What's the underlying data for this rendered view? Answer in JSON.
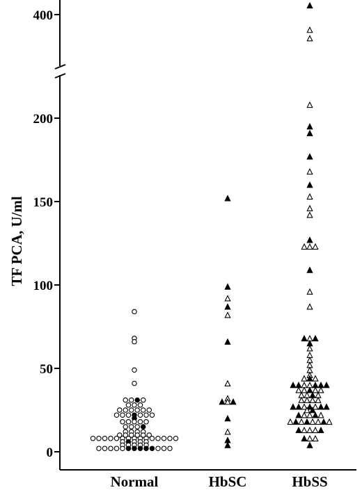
{
  "chart_data": {
    "type": "scatter",
    "title": "",
    "xlabel": "",
    "ylabel": "TF PCA, U/ml",
    "categories": [
      "Normal",
      "HbSC",
      "HbSS"
    ],
    "y_ticks_lower": [
      "0",
      "50",
      "100",
      "150",
      "200"
    ],
    "y_ticks_upper": [
      "400"
    ],
    "ylim_lower": [
      0,
      225
    ],
    "ylim_upper": [
      350,
      420
    ],
    "axis_break": "between 225 and 350",
    "marker_legend": {
      "Normal": "circle",
      "HbSC": "triangle",
      "HbSS": "triangle"
    },
    "series": [
      {
        "group": "Normal",
        "points": [
          {
            "y": 84,
            "filled": false
          },
          {
            "y": 68,
            "filled": false
          },
          {
            "y": 66,
            "filled": false
          },
          {
            "y": 49,
            "filled": false
          },
          {
            "y": 41,
            "filled": false
          },
          {
            "y": 31,
            "filled": false
          },
          {
            "y": 31,
            "filled": false
          },
          {
            "y": 31,
            "filled": true
          },
          {
            "y": 31,
            "filled": false
          },
          {
            "y": 28,
            "filled": false
          },
          {
            "y": 28,
            "filled": false
          },
          {
            "y": 28,
            "filled": false
          },
          {
            "y": 25,
            "filled": false
          },
          {
            "y": 25,
            "filled": false
          },
          {
            "y": 25,
            "filled": false
          },
          {
            "y": 25,
            "filled": false
          },
          {
            "y": 25,
            "filled": false
          },
          {
            "y": 25,
            "filled": false
          },
          {
            "y": 22,
            "filled": false
          },
          {
            "y": 22,
            "filled": false
          },
          {
            "y": 22,
            "filled": false
          },
          {
            "y": 22,
            "filled": true
          },
          {
            "y": 22,
            "filled": false
          },
          {
            "y": 22,
            "filled": false
          },
          {
            "y": 22,
            "filled": false
          },
          {
            "y": 20,
            "filled": true
          },
          {
            "y": 18,
            "filled": false
          },
          {
            "y": 18,
            "filled": false
          },
          {
            "y": 18,
            "filled": false
          },
          {
            "y": 18,
            "filled": false
          },
          {
            "y": 18,
            "filled": false
          },
          {
            "y": 15,
            "filled": false
          },
          {
            "y": 15,
            "filled": false
          },
          {
            "y": 15,
            "filled": false
          },
          {
            "y": 15,
            "filled": true
          },
          {
            "y": 12,
            "filled": false
          },
          {
            "y": 12,
            "filled": false
          },
          {
            "y": 12,
            "filled": false
          },
          {
            "y": 12,
            "filled": false
          },
          {
            "y": 10,
            "filled": false
          },
          {
            "y": 10,
            "filled": false
          },
          {
            "y": 10,
            "filled": false
          },
          {
            "y": 10,
            "filled": false
          },
          {
            "y": 10,
            "filled": false
          },
          {
            "y": 10,
            "filled": false
          },
          {
            "y": 8,
            "filled": false
          },
          {
            "y": 8,
            "filled": false
          },
          {
            "y": 8,
            "filled": false
          },
          {
            "y": 8,
            "filled": false
          },
          {
            "y": 8,
            "filled": false
          },
          {
            "y": 8,
            "filled": false
          },
          {
            "y": 8,
            "filled": false
          },
          {
            "y": 8,
            "filled": false
          },
          {
            "y": 8,
            "filled": false
          },
          {
            "y": 8,
            "filled": false
          },
          {
            "y": 8,
            "filled": false
          },
          {
            "y": 8,
            "filled": false
          },
          {
            "y": 8,
            "filled": false
          },
          {
            "y": 8,
            "filled": false
          },
          {
            "y": 8,
            "filled": false
          },
          {
            "y": 6,
            "filled": false
          },
          {
            "y": 6,
            "filled": true
          },
          {
            "y": 6,
            "filled": false
          },
          {
            "y": 6,
            "filled": false
          },
          {
            "y": 6,
            "filled": false
          },
          {
            "y": 4,
            "filled": false
          },
          {
            "y": 4,
            "filled": false
          },
          {
            "y": 4,
            "filled": false
          },
          {
            "y": 4,
            "filled": false
          },
          {
            "y": 4,
            "filled": false
          },
          {
            "y": 2,
            "filled": false
          },
          {
            "y": 2,
            "filled": false
          },
          {
            "y": 2,
            "filled": false
          },
          {
            "y": 2,
            "filled": false
          },
          {
            "y": 2,
            "filled": false
          },
          {
            "y": 2,
            "filled": true
          },
          {
            "y": 2,
            "filled": true
          },
          {
            "y": 2,
            "filled": true
          },
          {
            "y": 2,
            "filled": true
          },
          {
            "y": 2,
            "filled": true
          },
          {
            "y": 2,
            "filled": false
          },
          {
            "y": 2,
            "filled": false
          },
          {
            "y": 2,
            "filled": false
          }
        ]
      },
      {
        "group": "HbSC",
        "points": [
          {
            "y": 152,
            "filled": true
          },
          {
            "y": 99,
            "filled": true
          },
          {
            "y": 92,
            "filled": false
          },
          {
            "y": 87,
            "filled": true
          },
          {
            "y": 82,
            "filled": false
          },
          {
            "y": 66,
            "filled": true
          },
          {
            "y": 41,
            "filled": false
          },
          {
            "y": 32,
            "filled": false
          },
          {
            "y": 30,
            "filled": true
          },
          {
            "y": 30,
            "filled": false
          },
          {
            "y": 30,
            "filled": true
          },
          {
            "y": 20,
            "filled": true
          },
          {
            "y": 12,
            "filled": false
          },
          {
            "y": 7,
            "filled": true
          },
          {
            "y": 4,
            "filled": true
          }
        ]
      },
      {
        "group": "HbSS",
        "points": [
          {
            "y": 412,
            "filled": true
          },
          {
            "y": 380,
            "filled": false
          },
          {
            "y": 369,
            "filled": false
          },
          {
            "y": 208,
            "filled": false
          },
          {
            "y": 195,
            "filled": true
          },
          {
            "y": 191,
            "filled": true
          },
          {
            "y": 177,
            "filled": true
          },
          {
            "y": 168,
            "filled": false
          },
          {
            "y": 160,
            "filled": true
          },
          {
            "y": 153,
            "filled": false
          },
          {
            "y": 146,
            "filled": false
          },
          {
            "y": 142,
            "filled": false
          },
          {
            "y": 127,
            "filled": true
          },
          {
            "y": 123,
            "filled": false
          },
          {
            "y": 123,
            "filled": false
          },
          {
            "y": 123,
            "filled": false
          },
          {
            "y": 109,
            "filled": true
          },
          {
            "y": 96,
            "filled": false
          },
          {
            "y": 87,
            "filled": false
          },
          {
            "y": 68,
            "filled": true
          },
          {
            "y": 68,
            "filled": false
          },
          {
            "y": 68,
            "filled": true
          },
          {
            "y": 65,
            "filled": true
          },
          {
            "y": 62,
            "filled": false
          },
          {
            "y": 58,
            "filled": false
          },
          {
            "y": 55,
            "filled": false
          },
          {
            "y": 52,
            "filled": false
          },
          {
            "y": 49,
            "filled": false
          },
          {
            "y": 46,
            "filled": false
          },
          {
            "y": 44,
            "filled": false
          },
          {
            "y": 44,
            "filled": true
          },
          {
            "y": 44,
            "filled": false
          },
          {
            "y": 40,
            "filled": true
          },
          {
            "y": 40,
            "filled": true
          },
          {
            "y": 40,
            "filled": false
          },
          {
            "y": 40,
            "filled": false
          },
          {
            "y": 40,
            "filled": true
          },
          {
            "y": 40,
            "filled": true
          },
          {
            "y": 40,
            "filled": true
          },
          {
            "y": 37,
            "filled": false
          },
          {
            "y": 37,
            "filled": false
          },
          {
            "y": 37,
            "filled": true
          },
          {
            "y": 37,
            "filled": false
          },
          {
            "y": 37,
            "filled": false
          },
          {
            "y": 34,
            "filled": false
          },
          {
            "y": 34,
            "filled": false
          },
          {
            "y": 34,
            "filled": true
          },
          {
            "y": 34,
            "filled": false
          },
          {
            "y": 31,
            "filled": false
          },
          {
            "y": 31,
            "filled": false
          },
          {
            "y": 31,
            "filled": false
          },
          {
            "y": 31,
            "filled": false
          },
          {
            "y": 27,
            "filled": true
          },
          {
            "y": 27,
            "filled": true
          },
          {
            "y": 27,
            "filled": false
          },
          {
            "y": 27,
            "filled": true
          },
          {
            "y": 27,
            "filled": false
          },
          {
            "y": 27,
            "filled": true
          },
          {
            "y": 27,
            "filled": true
          },
          {
            "y": 25,
            "filled": false
          },
          {
            "y": 25,
            "filled": true
          },
          {
            "y": 22,
            "filled": true
          },
          {
            "y": 22,
            "filled": false
          },
          {
            "y": 22,
            "filled": false
          },
          {
            "y": 22,
            "filled": true
          },
          {
            "y": 22,
            "filled": false
          },
          {
            "y": 18,
            "filled": false
          },
          {
            "y": 18,
            "filled": true
          },
          {
            "y": 18,
            "filled": false
          },
          {
            "y": 18,
            "filled": true
          },
          {
            "y": 18,
            "filled": false
          },
          {
            "y": 18,
            "filled": false
          },
          {
            "y": 18,
            "filled": true
          },
          {
            "y": 18,
            "filled": false
          },
          {
            "y": 13,
            "filled": true
          },
          {
            "y": 13,
            "filled": false
          },
          {
            "y": 13,
            "filled": false
          },
          {
            "y": 13,
            "filled": false
          },
          {
            "y": 13,
            "filled": true
          },
          {
            "y": 8,
            "filled": true
          },
          {
            "y": 8,
            "filled": false
          },
          {
            "y": 8,
            "filled": false
          },
          {
            "y": 4,
            "filled": true
          }
        ]
      }
    ]
  }
}
